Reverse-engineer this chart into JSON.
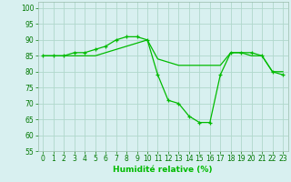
{
  "line1_x": [
    0,
    1,
    2,
    3,
    4,
    5,
    6,
    7,
    8,
    9,
    10,
    11,
    12,
    13,
    14,
    15,
    16,
    17,
    18,
    19,
    20,
    21,
    22,
    23
  ],
  "line1_y": [
    85,
    85,
    85,
    86,
    86,
    87,
    88,
    90,
    91,
    91,
    90,
    79,
    71,
    70,
    66,
    64,
    64,
    79,
    86,
    86,
    86,
    85,
    80,
    79
  ],
  "line2_x": [
    0,
    1,
    2,
    3,
    4,
    5,
    6,
    7,
    8,
    9,
    10,
    11,
    12,
    13,
    14,
    15,
    16,
    17,
    18,
    19,
    20,
    21,
    22,
    23
  ],
  "line2_y": [
    85,
    85,
    85,
    85,
    85,
    85,
    86,
    87,
    88,
    89,
    90,
    84,
    83,
    82,
    82,
    82,
    82,
    82,
    86,
    86,
    85,
    85,
    80,
    80
  ],
  "line_color": "#00bb00",
  "bg_color": "#d8f0f0",
  "grid_color": "#b0d8cc",
  "xlabel": "Humidité relative (%)",
  "ylim": [
    55,
    102
  ],
  "xlim": [
    -0.5,
    23.5
  ],
  "yticks": [
    55,
    60,
    65,
    70,
    75,
    80,
    85,
    90,
    95,
    100
  ],
  "xticks": [
    0,
    1,
    2,
    3,
    4,
    5,
    6,
    7,
    8,
    9,
    10,
    11,
    12,
    13,
    14,
    15,
    16,
    17,
    18,
    19,
    20,
    21,
    22,
    23
  ],
  "tick_fontsize": 5.5,
  "xlabel_fontsize": 6.5,
  "tick_color": "#007700"
}
